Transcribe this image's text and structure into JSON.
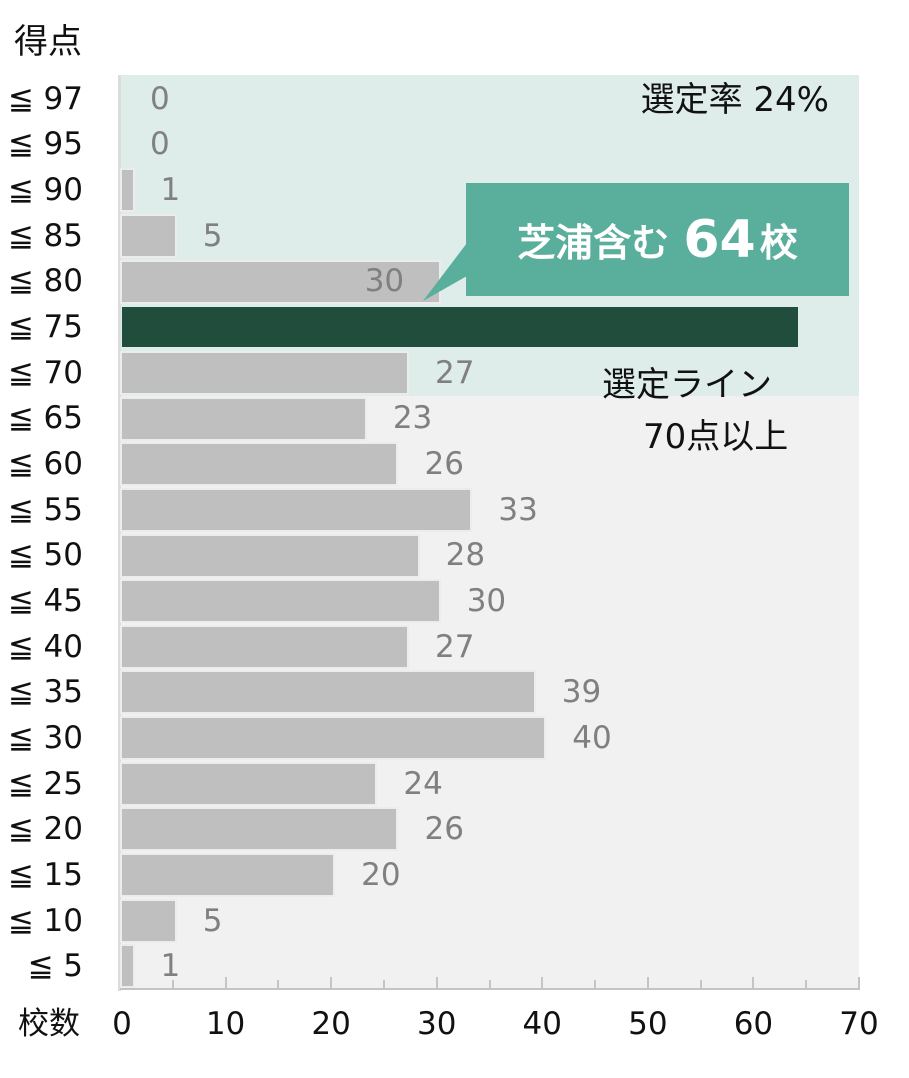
{
  "chart_data": {
    "type": "bar",
    "orientation": "horizontal",
    "title": "",
    "ylabel": "得点",
    "xlabel": "校数",
    "xlim": [
      0,
      70
    ],
    "xticks": [
      0,
      10,
      20,
      30,
      40,
      50,
      60,
      70
    ],
    "minor_tick_step": 5,
    "grid": false,
    "categories": [
      "≦ 97",
      "≦ 95",
      "≦ 90",
      "≦ 85",
      "≦ 80",
      "≦ 75",
      "≦ 70",
      "≦ 65",
      "≦ 60",
      "≦ 55",
      "≦ 50",
      "≦ 45",
      "≦ 40",
      "≦ 35",
      "≦ 30",
      "≦ 25",
      "≦ 20",
      "≦ 15",
      "≦ 10",
      "≦ 5"
    ],
    "values": [
      0,
      0,
      1,
      5,
      30,
      64,
      27,
      23,
      26,
      33,
      28,
      30,
      27,
      39,
      40,
      24,
      26,
      20,
      5,
      1
    ],
    "highlight_index": 5,
    "selection_band": {
      "from_category": "≦ 97",
      "to_category": "≦ 70",
      "label": "選定率 24%"
    },
    "annotations": [
      {
        "text": "芝浦含む 64校",
        "target_category": "≦ 75"
      },
      {
        "text": "選定ライン 70点以上"
      },
      {
        "text": "選定率 24%"
      }
    ]
  },
  "labels": {
    "y_title": "得点",
    "x_title": "校数",
    "x_ticks": [
      "0",
      "10",
      "20",
      "30",
      "40",
      "50",
      "60",
      "70"
    ],
    "selection_rate": "選定率 24%",
    "callout_prefix": "芝浦含む",
    "callout_number": "64",
    "callout_suffix": "校",
    "selection_line_1": "選定ライン",
    "selection_line_2": "70点以上"
  },
  "colors": {
    "bar": "#bfbfbf",
    "highlight_bar": "#214e3c",
    "callout": "#5aae9c",
    "selection_band": "#deedea",
    "plot_bg": "#f1f1f1",
    "value_label": "#808080"
  }
}
